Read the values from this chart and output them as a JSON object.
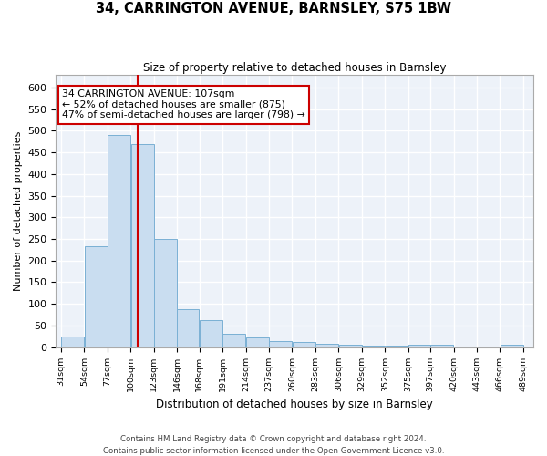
{
  "title": "34, CARRINGTON AVENUE, BARNSLEY, S75 1BW",
  "subtitle": "Size of property relative to detached houses in Barnsley",
  "xlabel": "Distribution of detached houses by size in Barnsley",
  "ylabel": "Number of detached properties",
  "bar_color": "#c9ddf0",
  "bar_edge_color": "#7ab0d4",
  "background_color": "#edf2f9",
  "grid_color": "#ffffff",
  "vline_x": 107,
  "vline_color": "#cc0000",
  "annotation_line1": "34 CARRINGTON AVENUE: 107sqm",
  "annotation_line2": "← 52% of detached houses are smaller (875)",
  "annotation_line3": "47% of semi-detached houses are larger (798) →",
  "annotation_box_color": "#ffffff",
  "annotation_box_edge": "#cc0000",
  "bins": [
    31,
    54,
    77,
    100,
    123,
    146,
    168,
    191,
    214,
    237,
    260,
    283,
    306,
    329,
    352,
    375,
    397,
    420,
    443,
    466,
    489
  ],
  "bin_labels": [
    "31sqm",
    "54sqm",
    "77sqm",
    "100sqm",
    "123sqm",
    "146sqm",
    "168sqm",
    "191sqm",
    "214sqm",
    "237sqm",
    "260sqm",
    "283sqm",
    "306sqm",
    "329sqm",
    "352sqm",
    "375sqm",
    "397sqm",
    "420sqm",
    "443sqm",
    "466sqm",
    "489sqm"
  ],
  "values": [
    25,
    232,
    490,
    470,
    249,
    87,
    63,
    30,
    22,
    13,
    11,
    8,
    5,
    3,
    3,
    6,
    6,
    1,
    1,
    5
  ],
  "ylim": [
    0,
    630
  ],
  "yticks": [
    0,
    50,
    100,
    150,
    200,
    250,
    300,
    350,
    400,
    450,
    500,
    550,
    600
  ],
  "footer_line1": "Contains HM Land Registry data © Crown copyright and database right 2024.",
  "footer_line2": "Contains public sector information licensed under the Open Government Licence v3.0."
}
